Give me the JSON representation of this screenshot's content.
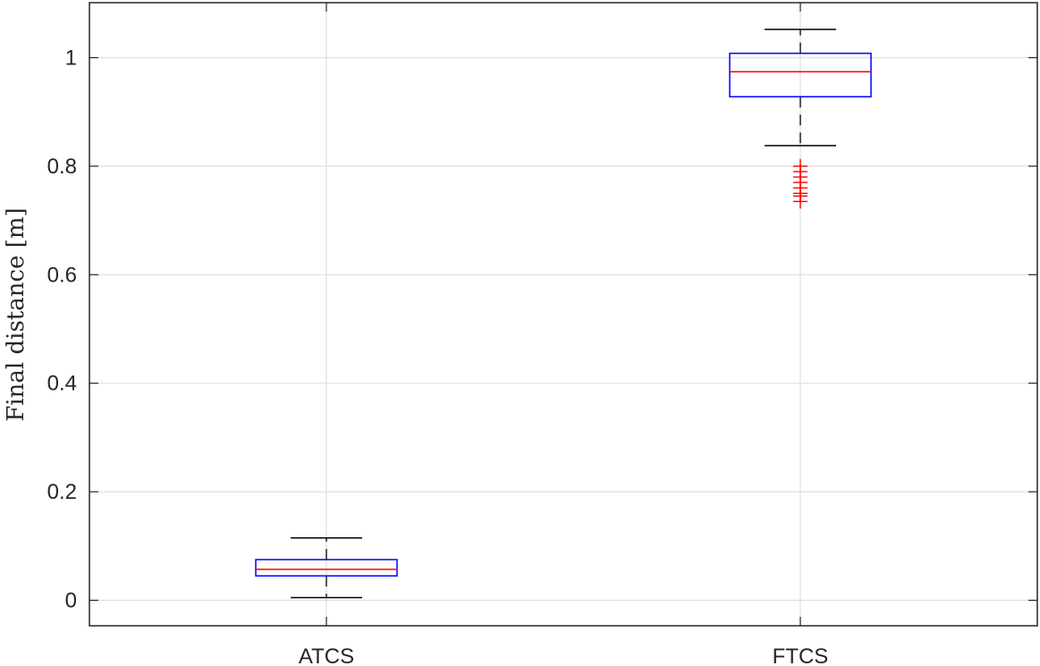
{
  "chart_data": {
    "type": "box",
    "title": "",
    "xlabel": "",
    "ylabel": "Final distance [m]",
    "ylim": [
      -0.05,
      1.1
    ],
    "yticks": [
      0,
      0.2,
      0.4,
      0.6,
      0.8,
      1
    ],
    "ytick_labels": [
      "0",
      "0.2",
      "0.4",
      "0.6",
      "0.8",
      "1"
    ],
    "grid": true,
    "categories": [
      "ATCS",
      "FTCS"
    ],
    "boxes": [
      {
        "category": "ATCS",
        "whisker_low": 0.005,
        "q1": 0.045,
        "median": 0.057,
        "q3": 0.075,
        "whisker_high": 0.115,
        "outliers": []
      },
      {
        "category": "FTCS",
        "whisker_low": 0.838,
        "q1": 0.928,
        "median": 0.974,
        "q3": 1.008,
        "whisker_high": 1.052,
        "outliers": [
          0.735,
          0.745,
          0.75,
          0.76,
          0.77,
          0.78,
          0.79,
          0.8
        ]
      }
    ],
    "colors": {
      "box": "#0000ff",
      "median": "#ff0000",
      "whisker": "#000000",
      "outlier": "#ff0000",
      "grid": "#dfdfdf",
      "axis": "#262626"
    }
  }
}
